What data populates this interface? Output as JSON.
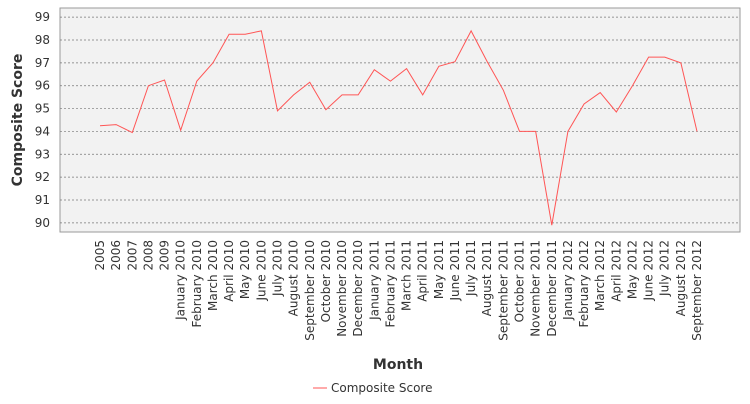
{
  "chart_data": {
    "type": "line",
    "x_label": "Month",
    "y_label": "Composite Score",
    "categories": [
      "2005",
      "2006",
      "2007",
      "2008",
      "2009",
      "January 2010",
      "February 2010",
      "March 2010",
      "April 2010",
      "May 2010",
      "June 2010",
      "July 2010",
      "August 2010",
      "September 2010",
      "October 2010",
      "November 2010",
      "December 2010",
      "January 2011",
      "February 2011",
      "March 2011",
      "April 2011",
      "May 2011",
      "June 2011",
      "July 2011",
      "August 2011",
      "September 2011",
      "October 2011",
      "November 2011",
      "December 2011",
      "January 2012",
      "February 2012",
      "March 2012",
      "April 2012",
      "May 2012",
      "June 2012",
      "July 2012",
      "August 2012",
      "September 2012"
    ],
    "series": [
      {
        "name": "Composite Score",
        "color": "#ff5555",
        "values": [
          94.25,
          94.3,
          93.95,
          96.0,
          96.25,
          94.05,
          96.2,
          97.0,
          98.25,
          98.25,
          98.4,
          94.9,
          95.6,
          96.15,
          94.95,
          95.6,
          95.6,
          96.7,
          96.2,
          96.75,
          95.6,
          96.85,
          97.05,
          98.4,
          97.05,
          95.8,
          94.0,
          94.0,
          89.9,
          94.0,
          95.2,
          95.7,
          94.85,
          96.0,
          97.25,
          97.25,
          97.0,
          94.0
        ]
      }
    ],
    "ylim": [
      89.6,
      99.4
    ],
    "yticks": [
      90,
      91,
      92,
      93,
      94,
      95,
      96,
      97,
      98,
      99
    ],
    "grid": true,
    "legend": "bottom"
  }
}
